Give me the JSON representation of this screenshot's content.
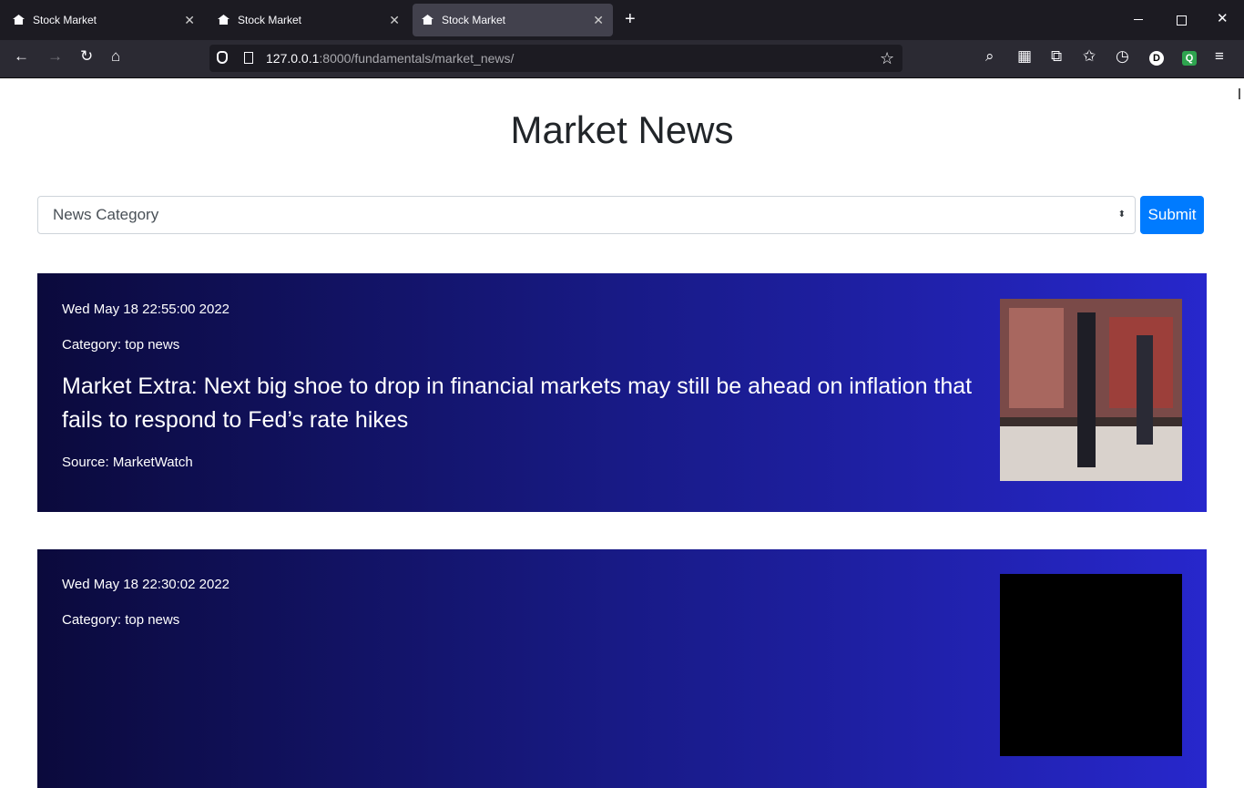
{
  "browser": {
    "tabs": [
      "Stock Market",
      "Stock Market",
      "Stock Market"
    ],
    "url": {
      "host": "127.0.0.1",
      "path": ":8000/fundamentals/market_news/"
    },
    "profile_initial": "D",
    "extension_initial": "Q"
  },
  "page": {
    "title": "Market News",
    "select_placeholder": "News Category",
    "submit": "Submit",
    "articles": [
      {
        "date": "Wed May 18 22:55:00 2022",
        "category": "Category: top news",
        "headline": "Market Extra: Next big shoe to drop in financial markets may still be ahead on inflation that fails to respond to Fed’s rate hikes",
        "source": "Source: MarketWatch"
      },
      {
        "date": "Wed May 18 22:30:02 2022",
        "category": "Category: top news"
      }
    ]
  }
}
